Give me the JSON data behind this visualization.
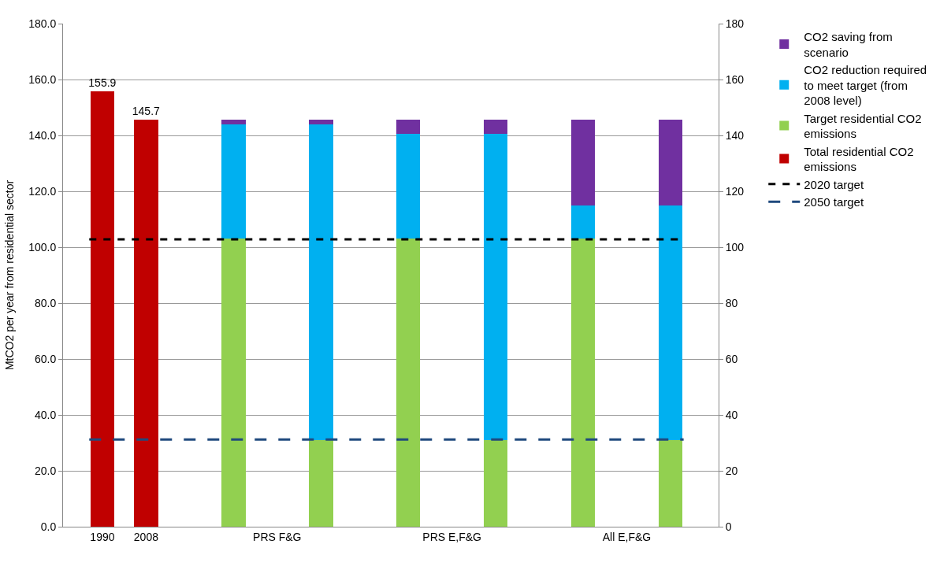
{
  "chart_data": {
    "type": "bar",
    "stacked": true,
    "categories": [
      "1990",
      "2008",
      null,
      null,
      "PRS F&G",
      null,
      null,
      null,
      "PRS E,F&G",
      null,
      null,
      null,
      "All E,F&G",
      null
    ],
    "ylabel": "MtCO2 per year from residential sector",
    "ylim": [
      0,
      180
    ],
    "yticks": [
      {
        "value": 0,
        "label": "0.0"
      },
      {
        "value": 20,
        "label": "20.0"
      },
      {
        "value": 40,
        "label": "40.0"
      },
      {
        "value": 60,
        "label": "60.0"
      },
      {
        "value": 80,
        "label": "80.0"
      },
      {
        "value": 100,
        "label": "100.0"
      },
      {
        "value": 120,
        "label": "120.0"
      },
      {
        "value": 140,
        "label": "140.0"
      },
      {
        "value": 160,
        "label": "160.0"
      },
      {
        "value": 180,
        "label": "180.0"
      }
    ],
    "y2lim": [
      0,
      180
    ],
    "y2ticks": [
      0,
      20,
      40,
      60,
      80,
      100,
      120,
      140,
      160,
      180
    ],
    "series": [
      {
        "name": "Total residential CO2 emissions",
        "color": "#c00000",
        "values": [
          155.9,
          145.7,
          null,
          null,
          null,
          null,
          null,
          null,
          null,
          null,
          null,
          null,
          null,
          null
        ],
        "value_labels": [
          "155.9",
          "145.7",
          null,
          null,
          null,
          null,
          null,
          null,
          null,
          null,
          null,
          null,
          null,
          null
        ]
      },
      {
        "name": "Target residential CO2 emissions",
        "color": "#92d050",
        "values": [
          null,
          null,
          null,
          103,
          null,
          31,
          null,
          103,
          null,
          31,
          null,
          103,
          null,
          31
        ]
      },
      {
        "name": "CO2 reduction required to meet target (from 2008 level)",
        "color": "#00b0f0",
        "values": [
          null,
          null,
          null,
          41,
          null,
          113,
          null,
          37.5,
          null,
          109.5,
          null,
          12,
          null,
          84
        ]
      },
      {
        "name": "CO2 saving from scenario",
        "color": "#7030a0",
        "values": [
          null,
          null,
          null,
          1.7,
          null,
          1.7,
          null,
          5.2,
          null,
          5.2,
          null,
          30.7,
          null,
          30.7
        ]
      }
    ],
    "ref_lines": [
      {
        "axis": "y",
        "value": 102.8,
        "label": "2020 target",
        "color": "#000000",
        "line_style": "dotted"
      },
      {
        "axis": "y",
        "value": 31.2,
        "label": "2050 target",
        "color": "#1f497d",
        "line_style": "dashed"
      }
    ],
    "grid": "y",
    "legend": "right"
  }
}
